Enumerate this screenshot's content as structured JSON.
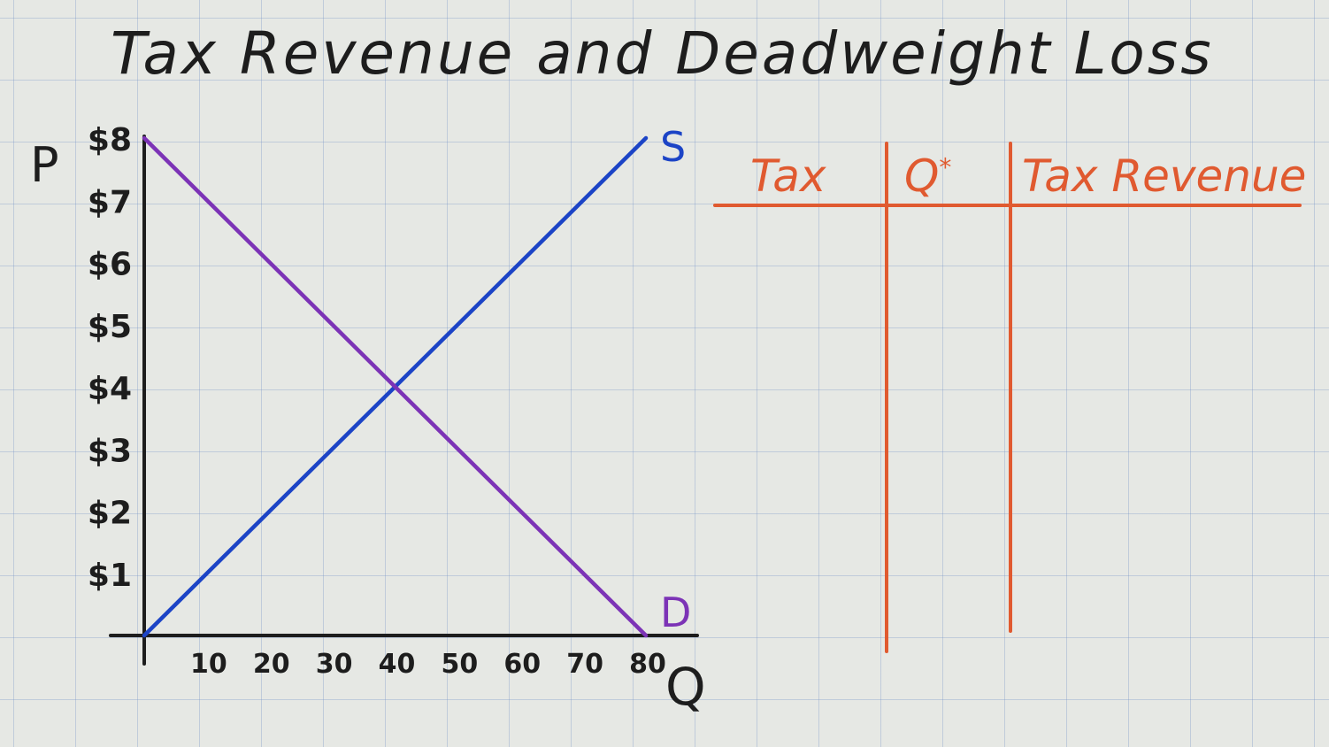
{
  "title": "Tax Revenue and Deadweight Loss",
  "colors": {
    "ink": "#1d1d1d",
    "supply": "#1c44c6",
    "demand": "#7c33b6",
    "table": "#e05a30",
    "grid": "#9fb4d8"
  },
  "chart_data": {
    "type": "line",
    "title": "Tax Revenue and Deadweight Loss",
    "xlabel": "Q",
    "ylabel": "P",
    "xlim": [
      0,
      80
    ],
    "ylim": [
      0,
      8
    ],
    "x_ticks": [
      10,
      20,
      30,
      40,
      50,
      60,
      70,
      80
    ],
    "y_ticks": [
      1,
      2,
      3,
      4,
      5,
      6,
      7,
      8
    ],
    "x_tick_labels": [
      "10",
      "20",
      "30",
      "40",
      "50",
      "60",
      "70",
      "80"
    ],
    "y_tick_labels": [
      "$1",
      "$2",
      "$3",
      "$4",
      "$5",
      "$6",
      "$7",
      "$8"
    ],
    "grid": true,
    "series": [
      {
        "name": "S",
        "color": "#1c44c6",
        "points": [
          [
            0,
            0
          ],
          [
            80,
            8
          ]
        ]
      },
      {
        "name": "D",
        "color": "#7c33b6",
        "points": [
          [
            0,
            8
          ],
          [
            80,
            0
          ]
        ]
      }
    ]
  },
  "table": {
    "headers": [
      "Tax",
      "Q",
      "Tax Revenue"
    ],
    "q_superscript": "*",
    "rows": []
  }
}
